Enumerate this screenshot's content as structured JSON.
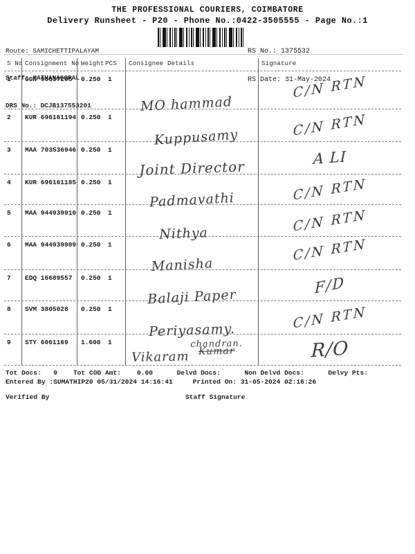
{
  "header": {
    "title": "THE PROFESSIONAL COURIERS, COIMBATORE",
    "subtitle": "Delivery Runsheet - P20 - Phone No.:0422-3505555 - Page No.:1",
    "route_label": "Route:",
    "route": "SAMICHETTIPALAYAM",
    "staff_label": "Staff:",
    "staff": "MATHANAGOPAL",
    "drs_label": "DRS No.:",
    "drs_no": "DCJB137553201",
    "rs_no_label": "RS No.:",
    "rs_no": "1375532",
    "rs_date_label": "RS Date:",
    "rs_date": "31-May-2024",
    "barcode_icon": "barcode"
  },
  "table": {
    "columns": {
      "sno": "S No",
      "consignment": "Consignment No",
      "weight": "Weight",
      "pcs": "PCS",
      "consignee": "Consignee Details",
      "signature": "Signature"
    },
    "rows": [
      {
        "sno": "1",
        "consignment": "GGN 98637205",
        "weight": "0.250",
        "pcs": "1",
        "consignee": "MO hammad",
        "signature": "C/N RTN"
      },
      {
        "sno": "2",
        "consignment": "KUR 696161194",
        "weight": "0.250",
        "pcs": "1",
        "consignee": "Kuppusamy",
        "signature": "C/N RTN"
      },
      {
        "sno": "3",
        "consignment": "MAA 703536946",
        "weight": "0.250",
        "pcs": "1",
        "consignee": "Joint Director",
        "signature": "A LI"
      },
      {
        "sno": "4",
        "consignment": "KUR 696161185",
        "weight": "0.250",
        "pcs": "1",
        "consignee": "Padmavathi",
        "signature": "C/N RTN"
      },
      {
        "sno": "5",
        "consignment": "MAA 944939910",
        "weight": "0.250",
        "pcs": "1",
        "consignee": "Nithya",
        "signature": "C/N RTN"
      },
      {
        "sno": "6",
        "consignment": "MAA 944939909",
        "weight": "0.250",
        "pcs": "1",
        "consignee": "Manisha",
        "signature": "C/N RTN"
      },
      {
        "sno": "7",
        "consignment": "EDQ 16689557",
        "weight": "0.250",
        "pcs": "1",
        "consignee": "Balaji Paper",
        "signature": "F/D"
      },
      {
        "sno": "8",
        "consignment": "SVM 3805028",
        "weight": "0.250",
        "pcs": "1",
        "consignee": "Periyasamy.",
        "signature": "C/N RTN"
      },
      {
        "sno": "9",
        "consignment": "STY 6061169",
        "weight": "1.600",
        "pcs": "1",
        "consignee": "Vikaram",
        "consignee_stack": [
          "chandran.",
          "Kumar"
        ],
        "signature": "R/O"
      }
    ]
  },
  "footer": {
    "tot_docs_label": "Tot Docs:",
    "tot_docs": "9",
    "tot_cod_label": "Tot COD Amt:",
    "tot_cod": "0.00",
    "delvd_docs_label": "Delvd Docs:",
    "non_delvd_docs_label": "Non Delvd Docs:",
    "delvy_pts_label": "Delvy Pts:",
    "entered_by_label": "Entered By :",
    "entered_by": "SUMATHIP20 05/31/2024 14:16:41",
    "printed_on_label": "Printed On:",
    "printed_on": "31-05-2024 02:16:26",
    "verified_by": "Verified By",
    "staff_signature": "Staff Signature"
  }
}
